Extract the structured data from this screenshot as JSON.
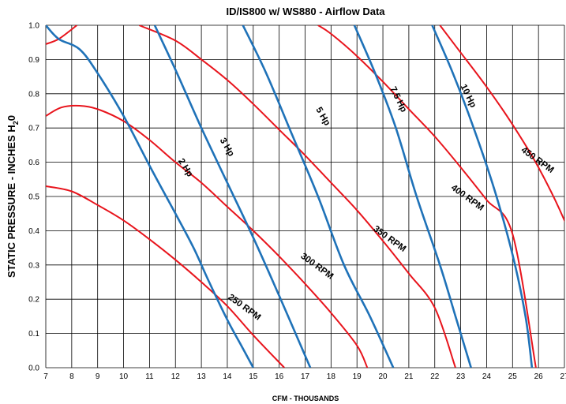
{
  "chart_data": {
    "type": "line",
    "title": "ID/IS800 w/ WS880 -  Airflow Data",
    "xlabel": "CFM - THOUSANDS",
    "ylabel_main": "STATIC PRESSURE - INCHES H",
    "ylabel_sub": "2",
    "ylabel_end": "0",
    "xlim": [
      7,
      27
    ],
    "ylim": [
      0,
      1.0
    ],
    "x_ticks": [
      "7",
      "8",
      "9",
      "10",
      "11",
      "12",
      "13",
      "14",
      "15",
      "16",
      "17",
      "18",
      "19",
      "20",
      "21",
      "22",
      "23",
      "24",
      "25",
      "26",
      "27"
    ],
    "y_ticks": [
      "0.0",
      "0.1",
      "0.2",
      "0.3",
      "0.4",
      "0.5",
      "0.6",
      "0.7",
      "0.8",
      "0.9",
      "1.0"
    ],
    "grid": true,
    "colors": {
      "rpm": "#e8141c",
      "hp": "#1f72b8"
    },
    "rpm_series": [
      {
        "name": "250 RPM",
        "label_at": [
          14.6,
          0.17
        ],
        "angle": 36,
        "points": [
          [
            7,
            0.53
          ],
          [
            8,
            0.515
          ],
          [
            9,
            0.475
          ],
          [
            10,
            0.43
          ],
          [
            11,
            0.375
          ],
          [
            12,
            0.315
          ],
          [
            13,
            0.25
          ],
          [
            14,
            0.18
          ],
          [
            15,
            0.095
          ],
          [
            16.2,
            0.0
          ]
        ]
      },
      {
        "name": "300 RPM",
        "label_at": [
          17.4,
          0.29
        ],
        "angle": 36,
        "points": [
          [
            7,
            0.735
          ],
          [
            7.6,
            0.76
          ],
          [
            8.3,
            0.765
          ],
          [
            9,
            0.755
          ],
          [
            10,
            0.72
          ],
          [
            11,
            0.665
          ],
          [
            12,
            0.6
          ],
          [
            13,
            0.54
          ],
          [
            14,
            0.47
          ],
          [
            15,
            0.4
          ],
          [
            16,
            0.325
          ],
          [
            17,
            0.245
          ],
          [
            18,
            0.16
          ],
          [
            19,
            0.065
          ],
          [
            19.4,
            0.0
          ]
        ]
      },
      {
        "name": "350 RPM",
        "label_at": [
          20.2,
          0.37
        ],
        "angle": 36,
        "points": [
          [
            7,
            0.945
          ],
          [
            7.5,
            0.96
          ],
          [
            8.2,
            1.0
          ]
        ]
      },
      {
        "name": "350 RPM main",
        "label_at": null,
        "angle": 0,
        "points": [
          [
            10.6,
            1.0
          ],
          [
            12,
            0.955
          ],
          [
            13,
            0.9
          ],
          [
            14,
            0.84
          ],
          [
            15,
            0.77
          ],
          [
            16,
            0.695
          ],
          [
            17,
            0.62
          ],
          [
            18,
            0.54
          ],
          [
            19,
            0.46
          ],
          [
            20,
            0.37
          ],
          [
            21,
            0.275
          ],
          [
            22,
            0.175
          ],
          [
            22.8,
            0.0
          ]
        ]
      },
      {
        "name": "400 RPM",
        "label_at": [
          23.2,
          0.49
        ],
        "angle": 36,
        "points": [
          [
            17.5,
            1.0
          ],
          [
            18,
            0.975
          ],
          [
            19,
            0.91
          ],
          [
            20,
            0.835
          ],
          [
            21,
            0.755
          ],
          [
            22,
            0.675
          ],
          [
            23,
            0.585
          ],
          [
            24,
            0.49
          ],
          [
            25,
            0.39
          ],
          [
            25.9,
            0.0
          ]
        ]
      },
      {
        "name": "450 RPM",
        "label_at": [
          25.9,
          0.6
        ],
        "angle": 36,
        "points": [
          [
            22.2,
            1.0
          ],
          [
            23,
            0.92
          ],
          [
            24,
            0.82
          ],
          [
            25,
            0.71
          ],
          [
            26,
            0.585
          ],
          [
            27,
            0.43
          ],
          [
            27.5,
            0.32
          ]
        ]
      }
    ],
    "hp_series": [
      {
        "name": "2 Hp",
        "label_at": [
          12.3,
          0.58
        ],
        "angle": 58,
        "points": [
          [
            7,
            1.0
          ],
          [
            7.5,
            0.96
          ],
          [
            8.3,
            0.93
          ],
          [
            9,
            0.86
          ],
          [
            10,
            0.735
          ],
          [
            11,
            0.59
          ],
          [
            12,
            0.45
          ],
          [
            12.7,
            0.35
          ],
          [
            13.3,
            0.25
          ],
          [
            14,
            0.14
          ],
          [
            14.5,
            0.07
          ],
          [
            15,
            0.0
          ]
        ]
      },
      {
        "name": "3 Hp",
        "label_at": [
          13.9,
          0.64
        ],
        "angle": 60,
        "points": [
          [
            11.2,
            1.0
          ],
          [
            12,
            0.87
          ],
          [
            13,
            0.7
          ],
          [
            14,
            0.54
          ],
          [
            15,
            0.38
          ],
          [
            16,
            0.21
          ],
          [
            17.2,
            0.0
          ]
        ]
      },
      {
        "name": "5 Hp",
        "label_at": [
          17.6,
          0.73
        ],
        "angle": 60,
        "points": [
          [
            14.6,
            1.0
          ],
          [
            15.5,
            0.86
          ],
          [
            16.5,
            0.68
          ],
          [
            17.5,
            0.5
          ],
          [
            18.5,
            0.3
          ],
          [
            19.5,
            0.15
          ],
          [
            20.4,
            0.0
          ]
        ]
      },
      {
        "name": "7.5 Hp",
        "label_at": [
          20.5,
          0.78
        ],
        "angle": 64,
        "points": [
          [
            18.9,
            1.0
          ],
          [
            19.7,
            0.86
          ],
          [
            20.5,
            0.7
          ],
          [
            21.3,
            0.5
          ],
          [
            22.2,
            0.3
          ],
          [
            22.8,
            0.15
          ],
          [
            23.4,
            0.0
          ]
        ]
      },
      {
        "name": "10 Hp",
        "label_at": [
          23.2,
          0.79
        ],
        "angle": 64,
        "points": [
          [
            21.9,
            1.0
          ],
          [
            22.7,
            0.86
          ],
          [
            23.5,
            0.7
          ],
          [
            24.3,
            0.52
          ],
          [
            25,
            0.33
          ],
          [
            25.5,
            0.15
          ],
          [
            25.75,
            0.0
          ]
        ]
      }
    ]
  }
}
